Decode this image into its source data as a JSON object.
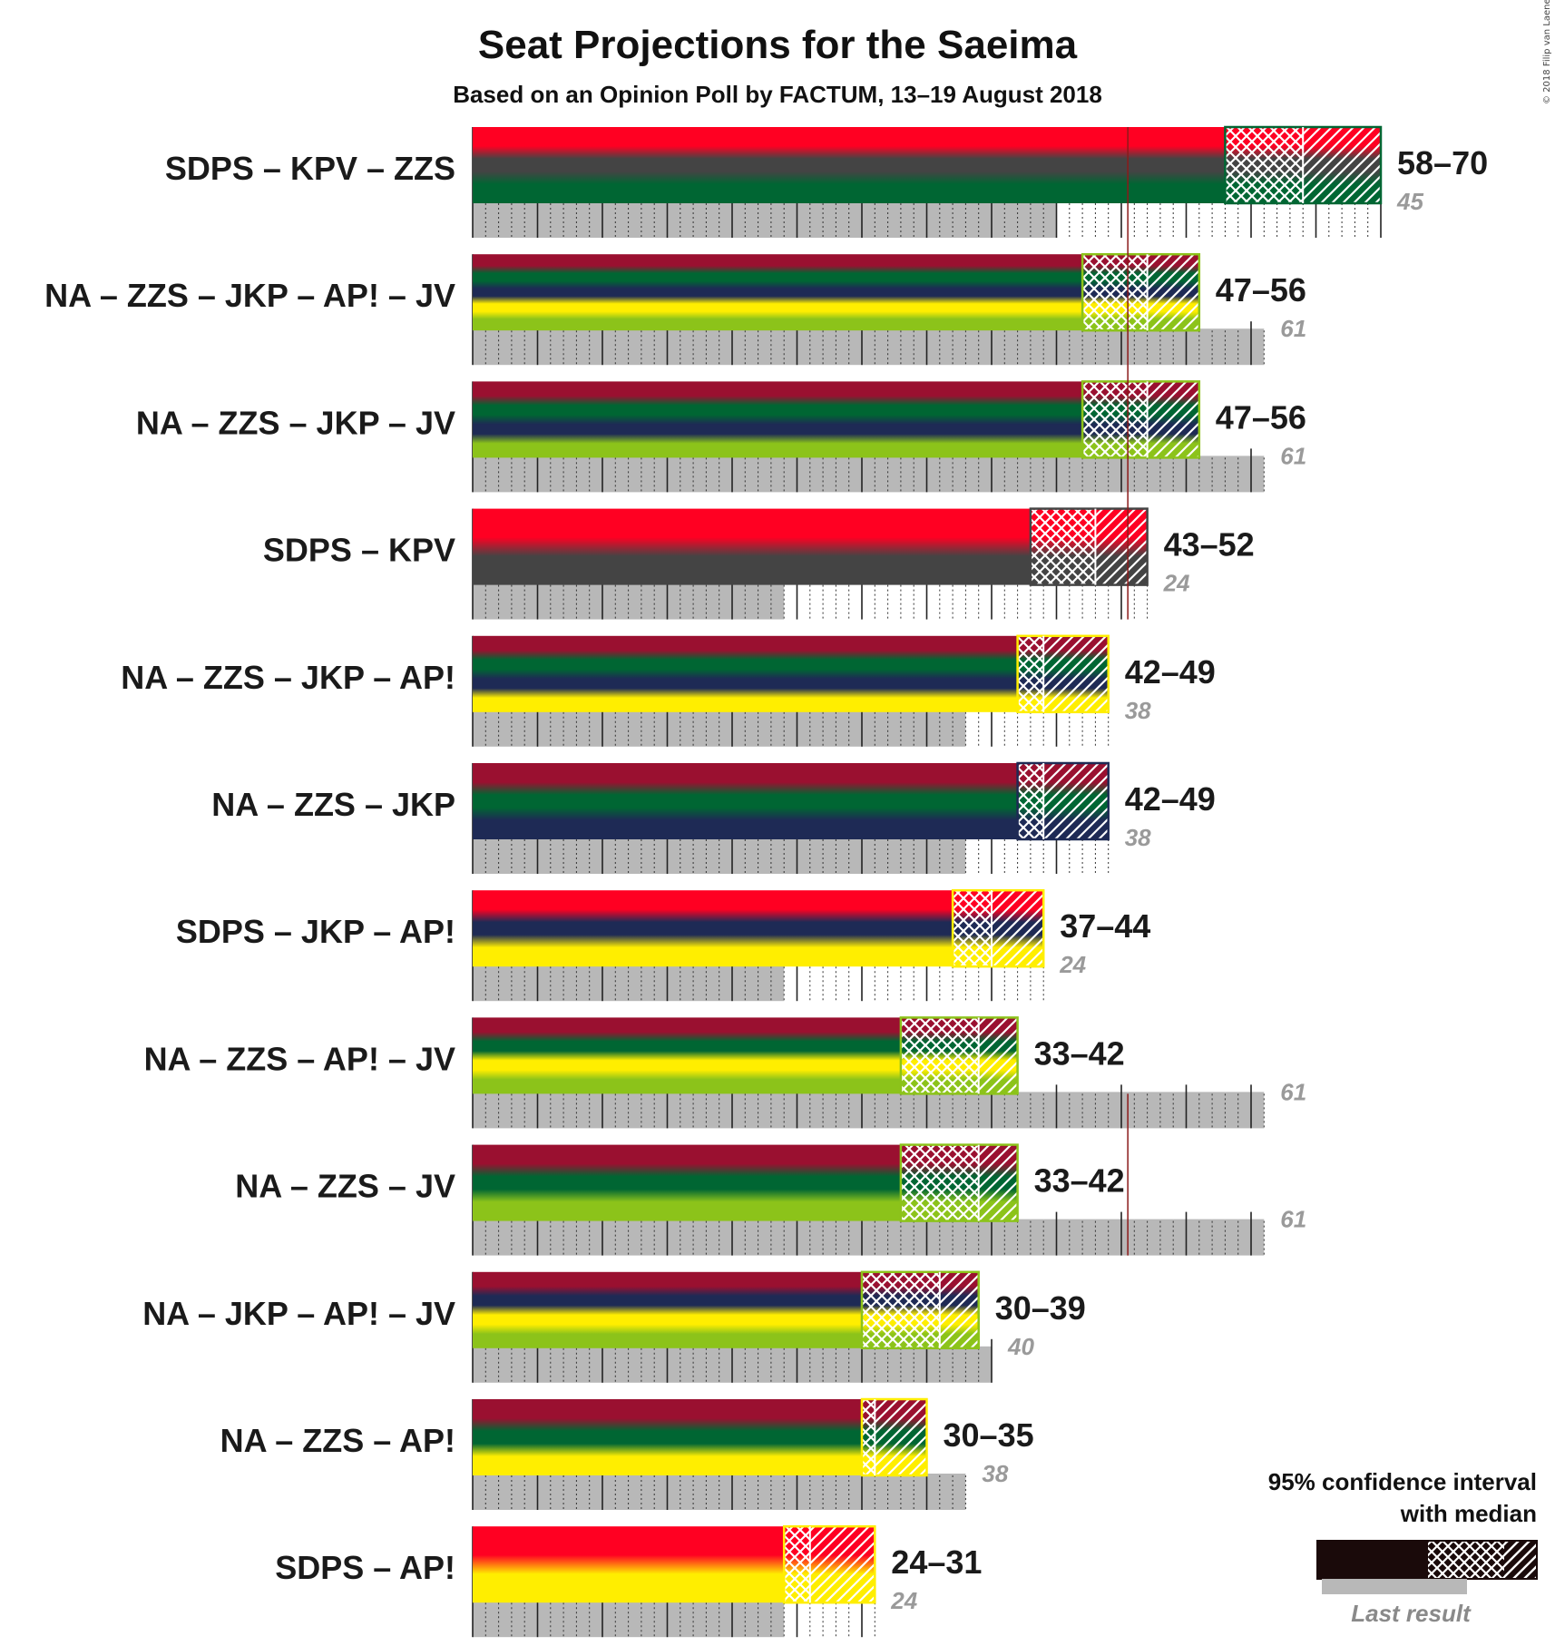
{
  "title": "Seat Projections for the Saeima",
  "subtitle": "Based on an Opinion Poll by FACTUM, 13–19 August 2018",
  "copyright": "© 2018 Filip van Laenen",
  "legend": {
    "line1": "95% confidence interval",
    "line2": "with median",
    "last_result": "Last result"
  },
  "colors": {
    "SDPS": "#ff0022",
    "KPV": "#444444",
    "ZZS": "#006633",
    "NA": "#9a1030",
    "JKP": "#1e2a55",
    "AP!": "#ffee00",
    "JV": "#8cc31a",
    "last_result": "#b8b8b8",
    "majority_line": "#8b1a1a",
    "legend_dark": "#1a0a0a"
  },
  "chart_data": {
    "type": "bar",
    "orientation": "horizontal",
    "x_unit": "seats",
    "xlim": [
      0,
      70
    ],
    "majority": 50.5,
    "grid": true,
    "legend_position": "bottom-right",
    "coalitions": [
      {
        "label": "SDPS – KPV – ZZS",
        "parties": [
          "SDPS",
          "KPV",
          "ZZS"
        ],
        "low": 58,
        "high": 70,
        "median": 64,
        "last": 45,
        "range_text": "58–70",
        "last_text": "45"
      },
      {
        "label": "NA – ZZS – JKP – AP! – JV",
        "parties": [
          "NA",
          "ZZS",
          "JKP",
          "AP!",
          "JV"
        ],
        "low": 47,
        "high": 56,
        "median": 52,
        "last": 61,
        "range_text": "47–56",
        "last_text": "61"
      },
      {
        "label": "NA – ZZS – JKP – JV",
        "parties": [
          "NA",
          "ZZS",
          "JKP",
          "JV"
        ],
        "low": 47,
        "high": 56,
        "median": 52,
        "last": 61,
        "range_text": "47–56",
        "last_text": "61"
      },
      {
        "label": "SDPS – KPV",
        "parties": [
          "SDPS",
          "KPV"
        ],
        "low": 43,
        "high": 52,
        "median": 48,
        "last": 24,
        "range_text": "43–52",
        "last_text": "24"
      },
      {
        "label": "NA – ZZS – JKP – AP!",
        "parties": [
          "NA",
          "ZZS",
          "JKP",
          "AP!"
        ],
        "low": 42,
        "high": 49,
        "median": 44,
        "last": 38,
        "range_text": "42–49",
        "last_text": "38"
      },
      {
        "label": "NA – ZZS – JKP",
        "parties": [
          "NA",
          "ZZS",
          "JKP"
        ],
        "low": 42,
        "high": 49,
        "median": 44,
        "last": 38,
        "range_text": "42–49",
        "last_text": "38"
      },
      {
        "label": "SDPS – JKP – AP!",
        "parties": [
          "SDPS",
          "JKP",
          "AP!"
        ],
        "low": 37,
        "high": 44,
        "median": 40,
        "last": 24,
        "range_text": "37–44",
        "last_text": "24"
      },
      {
        "label": "NA – ZZS – AP! – JV",
        "parties": [
          "NA",
          "ZZS",
          "AP!",
          "JV"
        ],
        "low": 33,
        "high": 42,
        "median": 39,
        "last": 61,
        "range_text": "33–42",
        "last_text": "61"
      },
      {
        "label": "NA – ZZS – JV",
        "parties": [
          "NA",
          "ZZS",
          "JV"
        ],
        "low": 33,
        "high": 42,
        "median": 39,
        "last": 61,
        "range_text": "33–42",
        "last_text": "61"
      },
      {
        "label": "NA – JKP – AP! – JV",
        "parties": [
          "NA",
          "JKP",
          "AP!",
          "JV"
        ],
        "low": 30,
        "high": 39,
        "median": 36,
        "last": 40,
        "range_text": "30–39",
        "last_text": "40"
      },
      {
        "label": "NA – ZZS – AP!",
        "parties": [
          "NA",
          "ZZS",
          "AP!"
        ],
        "low": 30,
        "high": 35,
        "median": 31,
        "last": 38,
        "range_text": "30–35",
        "last_text": "38"
      },
      {
        "label": "SDPS – AP!",
        "parties": [
          "SDPS",
          "AP!"
        ],
        "low": 24,
        "high": 31,
        "median": 26,
        "last": 24,
        "range_text": "24–31",
        "last_text": "24"
      }
    ]
  }
}
